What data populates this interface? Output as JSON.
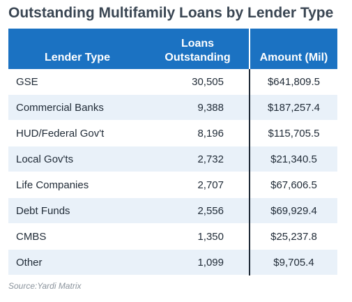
{
  "chart_data": {
    "type": "table",
    "title": "Outstanding Multifamily Loans by Lender Type",
    "columns": [
      "Lender Type",
      "Loans\nOutstanding",
      "Amount (Mil)"
    ],
    "column_header_lines": [
      [
        "Lender Type"
      ],
      [
        "Loans",
        "Outstanding"
      ],
      [
        "Amount (Mil)"
      ]
    ],
    "rows": [
      {
        "lender": "GSE",
        "loans": "30,505",
        "amount": "$641,809.5"
      },
      {
        "lender": "Commercial Banks",
        "loans": "9,388",
        "amount": "$187,257.4"
      },
      {
        "lender": "HUD/Federal Gov't",
        "loans": "8,196",
        "amount": "$115,705.5"
      },
      {
        "lender": "Local Gov'ts",
        "loans": "2,732",
        "amount": "$21,340.5"
      },
      {
        "lender": "Life Companies",
        "loans": "2,707",
        "amount": "$67,606.5"
      },
      {
        "lender": "Debt Funds",
        "loans": "2,556",
        "amount": "$69,929.4"
      },
      {
        "lender": "CMBS",
        "loans": "1,350",
        "amount": "$25,237.8"
      },
      {
        "lender": "Other",
        "loans": "1,099",
        "amount": "$9,705.4"
      }
    ],
    "source": "Source:Yardi Matrix"
  },
  "colors": {
    "header_bg": "#1b72c2",
    "header_text": "#ffffff",
    "row_alt_bg": "#e9f1f9",
    "title_text": "#3a4653",
    "source_text": "#8a939c"
  }
}
